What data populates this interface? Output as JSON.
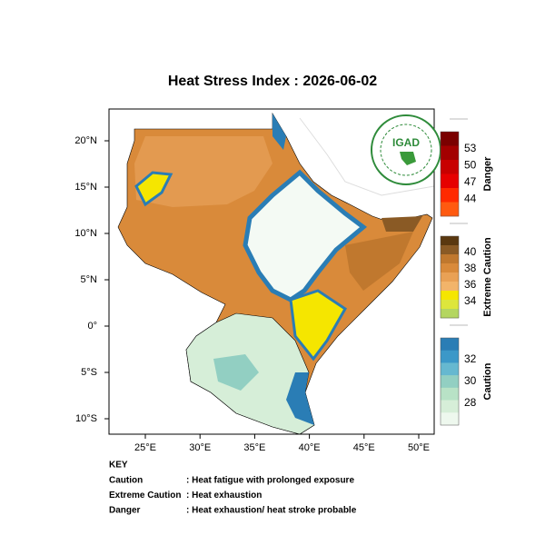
{
  "title": "Heat Stress Index : 2026-06-02",
  "map": {
    "lon_ticks": [
      "25°E",
      "30°E",
      "35°E",
      "40°E",
      "45°E",
      "50°E"
    ],
    "lat_ticks": [
      "20°N",
      "15°N",
      "10°N",
      "5°N",
      "0°",
      "5°S",
      "10°S"
    ],
    "logo": "IGAD"
  },
  "legend": [
    {
      "title": "Danger",
      "labels": [
        53,
        50,
        47,
        44
      ],
      "colors": [
        "#7a0000",
        "#a30000",
        "#c80000",
        "#e60000",
        "#ff2a00",
        "#ff5a10"
      ]
    },
    {
      "title": "Extreme Caution",
      "labels": [
        40,
        38,
        36,
        34
      ],
      "colors": [
        "#5a3810",
        "#8a5a25",
        "#c0782e",
        "#d98a3a",
        "#e9a155",
        "#f2b46a",
        "#f5e600",
        "#dde63c",
        "#b4d660"
      ]
    },
    {
      "title": "Caution",
      "labels": [
        32,
        30,
        28
      ],
      "colors": [
        "#2a7db5",
        "#3c98c8",
        "#66b8d0",
        "#92cfc2",
        "#b8e2c6",
        "#d6eed8",
        "#eef8ee"
      ]
    }
  ],
  "key": {
    "title": "KEY",
    "rows": [
      {
        "term": "Caution",
        "text": ": Heat fatigue with prolonged exposure"
      },
      {
        "term": "Extreme Caution",
        "text": ": Heat exhaustion"
      },
      {
        "term": "Danger",
        "text": ": Heat exhaustion/ heat stroke probable"
      }
    ]
  }
}
